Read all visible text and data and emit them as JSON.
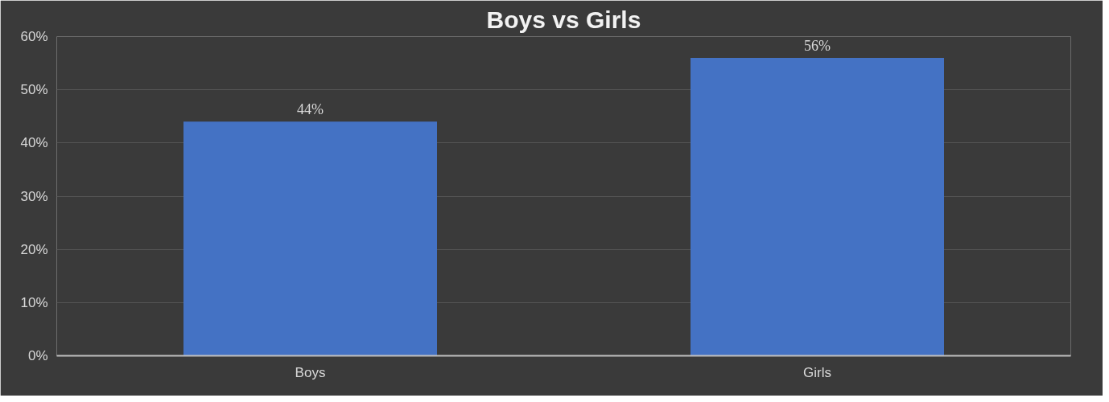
{
  "chart_data": {
    "type": "bar",
    "title": "Boys vs Girls",
    "categories": [
      "Boys",
      "Girls"
    ],
    "values": [
      44,
      56
    ],
    "value_labels": [
      "44%",
      "56%"
    ],
    "color": "#4472c4",
    "ylim": [
      0,
      60
    ],
    "yticks": [
      {
        "value": 0,
        "label": "0%"
      },
      {
        "value": 10,
        "label": "10%"
      },
      {
        "value": 20,
        "label": "20%"
      },
      {
        "value": 30,
        "label": "30%"
      },
      {
        "value": 40,
        "label": "40%"
      },
      {
        "value": 50,
        "label": "50%"
      },
      {
        "value": 60,
        "label": "60%"
      }
    ],
    "grid": "y"
  }
}
